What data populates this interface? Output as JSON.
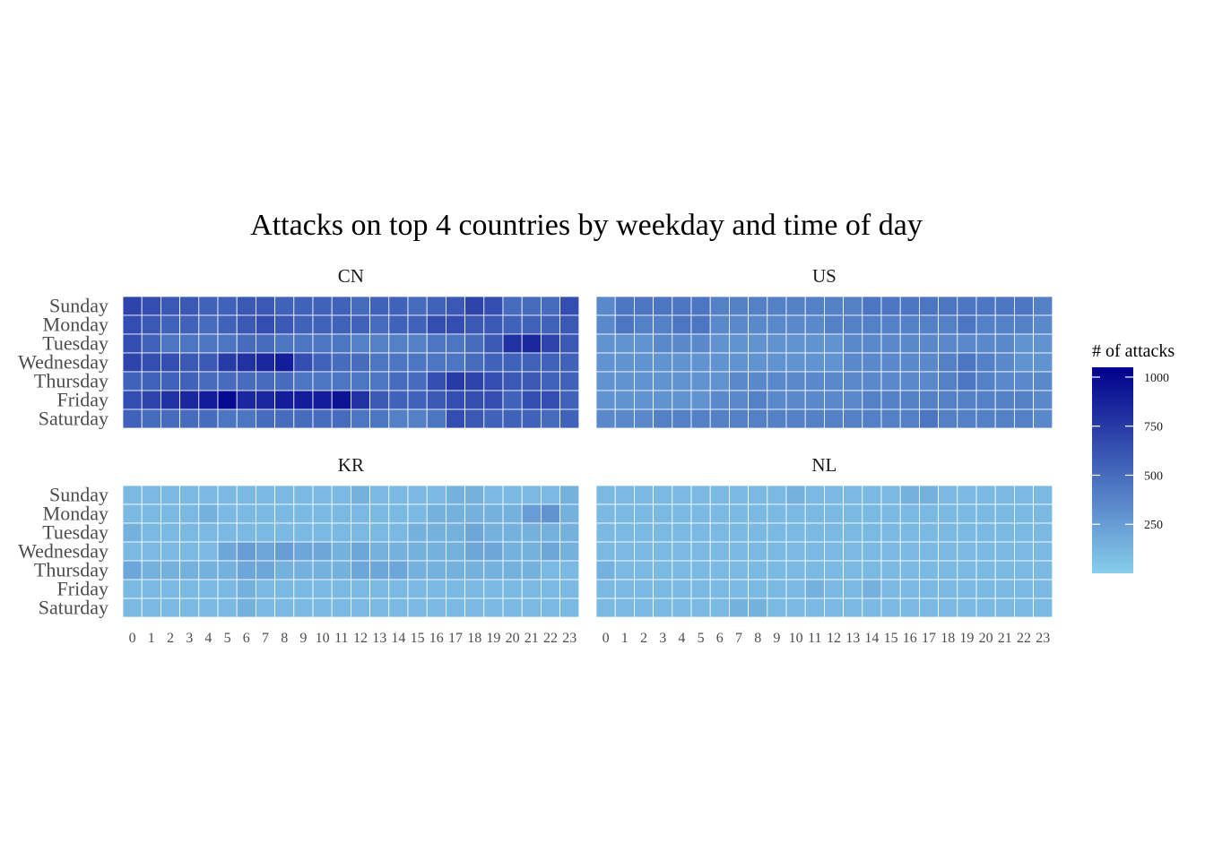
{
  "chart_data": {
    "type": "heatmap",
    "title": "Attacks on top 4 countries by weekday and time of day",
    "legend": {
      "title": "# of attacks",
      "breaks": [
        250,
        500,
        750,
        1000
      ],
      "position": "right"
    },
    "color_scale": {
      "low": "#87ceeb",
      "high": "#00008b",
      "min": 0,
      "max": 1050
    },
    "x": [
      "0",
      "1",
      "2",
      "3",
      "4",
      "5",
      "6",
      "7",
      "8",
      "9",
      "10",
      "11",
      "12",
      "13",
      "14",
      "15",
      "16",
      "17",
      "18",
      "19",
      "20",
      "21",
      "22",
      "23"
    ],
    "y": [
      "Sunday",
      "Monday",
      "Tuesday",
      "Wednesday",
      "Thursday",
      "Friday",
      "Saturday"
    ],
    "panels": [
      {
        "label": "CN",
        "values": [
          [
            700,
            650,
            600,
            600,
            550,
            550,
            600,
            600,
            550,
            550,
            550,
            550,
            500,
            550,
            550,
            500,
            550,
            600,
            700,
            650,
            500,
            500,
            500,
            650
          ],
          [
            650,
            600,
            550,
            550,
            500,
            550,
            600,
            650,
            600,
            550,
            550,
            550,
            550,
            500,
            550,
            550,
            650,
            650,
            600,
            600,
            550,
            550,
            550,
            600
          ],
          [
            650,
            550,
            450,
            450,
            450,
            450,
            500,
            500,
            450,
            450,
            450,
            450,
            400,
            400,
            400,
            400,
            450,
            450,
            500,
            600,
            800,
            850,
            700,
            600
          ],
          [
            700,
            650,
            650,
            600,
            600,
            750,
            800,
            850,
            900,
            650,
            550,
            500,
            500,
            450,
            450,
            450,
            450,
            450,
            500,
            550,
            550,
            550,
            550,
            550
          ],
          [
            550,
            550,
            550,
            550,
            500,
            500,
            500,
            500,
            500,
            450,
            450,
            450,
            450,
            450,
            500,
            500,
            650,
            750,
            700,
            650,
            600,
            600,
            550,
            550
          ],
          [
            650,
            700,
            800,
            850,
            900,
            1000,
            850,
            850,
            900,
            900,
            900,
            950,
            800,
            600,
            550,
            550,
            600,
            650,
            650,
            650,
            550,
            650,
            650,
            550
          ],
          [
            550,
            500,
            500,
            500,
            500,
            450,
            450,
            500,
            500,
            500,
            500,
            500,
            450,
            450,
            400,
            400,
            450,
            650,
            600,
            550,
            550,
            550,
            500,
            550
          ]
        ]
      },
      {
        "label": "US",
        "values": [
          [
            350,
            450,
            450,
            450,
            450,
            450,
            400,
            400,
            400,
            400,
            400,
            400,
            400,
            400,
            450,
            450,
            450,
            450,
            450,
            450,
            450,
            450,
            450,
            400
          ],
          [
            350,
            450,
            400,
            400,
            450,
            450,
            350,
            350,
            350,
            350,
            350,
            350,
            400,
            400,
            400,
            400,
            400,
            400,
            400,
            450,
            400,
            400,
            400,
            350
          ],
          [
            300,
            300,
            300,
            350,
            350,
            350,
            300,
            300,
            300,
            300,
            300,
            300,
            300,
            350,
            350,
            350,
            350,
            350,
            350,
            350,
            350,
            350,
            300,
            300
          ],
          [
            300,
            300,
            300,
            300,
            300,
            300,
            300,
            300,
            300,
            300,
            300,
            300,
            300,
            350,
            350,
            350,
            350,
            350,
            400,
            450,
            400,
            350,
            300,
            300
          ],
          [
            300,
            300,
            300,
            300,
            300,
            300,
            300,
            350,
            350,
            350,
            350,
            350,
            350,
            350,
            350,
            350,
            350,
            350,
            400,
            450,
            400,
            350,
            350,
            350
          ],
          [
            300,
            300,
            300,
            300,
            300,
            300,
            350,
            350,
            400,
            350,
            350,
            350,
            350,
            350,
            400,
            400,
            400,
            400,
            400,
            400,
            400,
            400,
            400,
            350
          ],
          [
            350,
            350,
            350,
            400,
            400,
            400,
            400,
            400,
            400,
            400,
            400,
            400,
            400,
            400,
            400,
            400,
            400,
            450,
            400,
            400,
            400,
            400,
            400,
            350
          ]
        ]
      },
      {
        "label": "KR",
        "values": [
          [
            100,
            100,
            100,
            100,
            100,
            100,
            100,
            100,
            100,
            100,
            100,
            100,
            150,
            100,
            100,
            100,
            100,
            150,
            150,
            100,
            100,
            100,
            100,
            150
          ],
          [
            100,
            100,
            100,
            100,
            150,
            100,
            100,
            100,
            100,
            100,
            100,
            100,
            100,
            100,
            100,
            100,
            150,
            150,
            150,
            150,
            150,
            250,
            300,
            150
          ],
          [
            150,
            100,
            100,
            100,
            100,
            100,
            100,
            100,
            100,
            100,
            100,
            100,
            100,
            100,
            100,
            150,
            150,
            150,
            200,
            150,
            150,
            150,
            150,
            150
          ],
          [
            100,
            100,
            100,
            100,
            100,
            200,
            250,
            200,
            250,
            200,
            200,
            150,
            200,
            150,
            150,
            150,
            150,
            150,
            200,
            200,
            150,
            150,
            200,
            150
          ],
          [
            200,
            150,
            150,
            150,
            150,
            150,
            200,
            200,
            150,
            150,
            150,
            150,
            200,
            200,
            200,
            150,
            150,
            150,
            150,
            150,
            150,
            150,
            100,
            100
          ],
          [
            100,
            100,
            100,
            100,
            100,
            100,
            150,
            100,
            100,
            100,
            100,
            100,
            100,
            100,
            100,
            100,
            100,
            100,
            100,
            100,
            100,
            100,
            100,
            100
          ],
          [
            100,
            100,
            100,
            100,
            100,
            100,
            150,
            100,
            100,
            100,
            100,
            100,
            100,
            100,
            100,
            100,
            100,
            100,
            100,
            100,
            100,
            100,
            100,
            100
          ]
        ]
      },
      {
        "label": "NL",
        "values": [
          [
            100,
            100,
            100,
            100,
            100,
            100,
            100,
            100,
            100,
            100,
            150,
            100,
            100,
            100,
            100,
            100,
            150,
            150,
            100,
            100,
            100,
            100,
            100,
            100
          ],
          [
            100,
            100,
            100,
            100,
            100,
            100,
            100,
            100,
            100,
            100,
            100,
            100,
            100,
            100,
            100,
            100,
            100,
            100,
            100,
            100,
            100,
            100,
            100,
            100
          ],
          [
            100,
            100,
            100,
            100,
            100,
            100,
            100,
            100,
            100,
            100,
            100,
            100,
            100,
            100,
            100,
            100,
            100,
            100,
            100,
            100,
            100,
            100,
            100,
            100
          ],
          [
            100,
            100,
            100,
            100,
            100,
            100,
            100,
            100,
            100,
            100,
            100,
            100,
            100,
            100,
            100,
            100,
            100,
            100,
            100,
            100,
            100,
            100,
            100,
            100
          ],
          [
            150,
            100,
            100,
            100,
            100,
            100,
            100,
            100,
            100,
            100,
            100,
            100,
            100,
            100,
            100,
            100,
            100,
            100,
            100,
            100,
            100,
            100,
            100,
            100
          ],
          [
            100,
            100,
            100,
            100,
            100,
            100,
            100,
            100,
            100,
            100,
            100,
            150,
            100,
            100,
            150,
            100,
            100,
            100,
            100,
            100,
            100,
            100,
            100,
            100
          ],
          [
            100,
            100,
            100,
            100,
            100,
            100,
            100,
            150,
            150,
            100,
            100,
            100,
            100,
            100,
            100,
            100,
            100,
            100,
            100,
            100,
            100,
            100,
            100,
            100
          ]
        ]
      }
    ]
  }
}
